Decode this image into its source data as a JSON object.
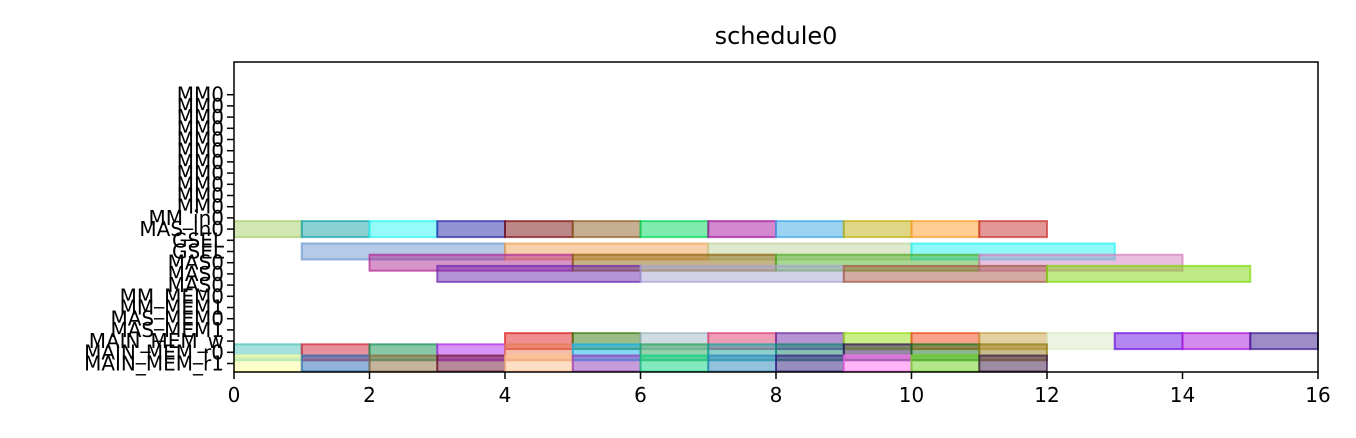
{
  "chart_data": {
    "type": "gantt",
    "title": "schedule0",
    "xlim": [
      0,
      16
    ],
    "xticks": [
      0,
      2,
      4,
      6,
      8,
      10,
      12,
      14,
      16
    ],
    "rows": [
      "MM0",
      "MM0",
      "MM0",
      "MM0",
      "MM0",
      "MM0",
      "MM0",
      "MM0",
      "MM0",
      "MM0",
      "MM0",
      "MM_in0",
      "MAS_in0",
      "GSEL",
      "GSEL",
      "MAS0",
      "MAS0",
      "MAS0",
      "MM_MEM0",
      "MM_MEM1",
      "MAS_MEM0",
      "MAS_MEM1",
      "MAIN_MEM_w",
      "MAIN_MEM_r0",
      "MAIN_MEM_r1"
    ],
    "bars": [
      {
        "row": 12,
        "start": 0,
        "end": 1,
        "color": "#a8cf6a"
      },
      {
        "row": 12,
        "start": 1,
        "end": 2,
        "color": "#14a2a8"
      },
      {
        "row": 12,
        "start": 2,
        "end": 3,
        "color": "#2cf7f2"
      },
      {
        "row": 12,
        "start": 3,
        "end": 4,
        "color": "#2a2aaa"
      },
      {
        "row": 12,
        "start": 4,
        "end": 5,
        "color": "#7e0f0f"
      },
      {
        "row": 12,
        "start": 5,
        "end": 6,
        "color": "#8d6025"
      },
      {
        "row": 12,
        "start": 6,
        "end": 7,
        "color": "#00d85a"
      },
      {
        "row": 12,
        "start": 7,
        "end": 8,
        "color": "#a6139c"
      },
      {
        "row": 12,
        "start": 8,
        "end": 9,
        "color": "#3aa7e8"
      },
      {
        "row": 12,
        "start": 9,
        "end": 10,
        "color": "#bfb00c"
      },
      {
        "row": 12,
        "start": 10,
        "end": 11,
        "color": "#ff9c26"
      },
      {
        "row": 12,
        "start": 11,
        "end": 12,
        "color": "#c92f2f"
      },
      {
        "row": 14,
        "start": 1,
        "end": 4,
        "color": "#6b96cf"
      },
      {
        "row": 14,
        "start": 4,
        "end": 7,
        "color": "#f0a052"
      },
      {
        "row": 14,
        "start": 7,
        "end": 10,
        "color": "#bdd49b"
      },
      {
        "row": 14,
        "start": 10,
        "end": 13,
        "color": "#1ff3f2"
      },
      {
        "row": 15,
        "start": 2,
        "end": 5,
        "color": "#b02a93"
      },
      {
        "row": 15,
        "start": 5,
        "end": 8,
        "color": "#8e6510"
      },
      {
        "row": 15,
        "start": 8,
        "end": 11,
        "color": "#52ad2c"
      },
      {
        "row": 15,
        "start": 11,
        "end": 14,
        "color": "#d37dbe"
      },
      {
        "row": 16,
        "start": 3,
        "end": 6,
        "color": "#6d25ae"
      },
      {
        "row": 16,
        "start": 6,
        "end": 9,
        "color": "#a7a4d3"
      },
      {
        "row": 16,
        "start": 9,
        "end": 12,
        "color": "#a55a42"
      },
      {
        "row": 16,
        "start": 12,
        "end": 15,
        "color": "#80d70d"
      },
      {
        "row": 22,
        "start": 4,
        "end": 5,
        "color": "#dd1e1e"
      },
      {
        "row": 22,
        "start": 5,
        "end": 6,
        "color": "#3a7b12"
      },
      {
        "row": 22,
        "start": 6,
        "end": 7,
        "color": "#9fb9c3"
      },
      {
        "row": 22,
        "start": 7,
        "end": 8,
        "color": "#df3d72"
      },
      {
        "row": 22,
        "start": 8,
        "end": 9,
        "color": "#6b2ea6"
      },
      {
        "row": 22,
        "start": 9,
        "end": 10,
        "color": "#95e012"
      },
      {
        "row": 22,
        "start": 10,
        "end": 11,
        "color": "#ee4716"
      },
      {
        "row": 22,
        "start": 11,
        "end": 12,
        "color": "#c7a147"
      },
      {
        "row": 22,
        "start": 12,
        "end": 13,
        "color": "#dbe9c4"
      },
      {
        "row": 22,
        "start": 13,
        "end": 14,
        "color": "#6a0de4"
      },
      {
        "row": 22,
        "start": 14,
        "end": 15,
        "color": "#a917dc"
      },
      {
        "row": 22,
        "start": 15,
        "end": 16,
        "color": "#3a1a8f"
      },
      {
        "row": 23,
        "start": 0,
        "end": 1,
        "color": "#4fc3bb"
      },
      {
        "row": 23,
        "start": 1,
        "end": 2,
        "color": "#d0243a"
      },
      {
        "row": 23,
        "start": 2,
        "end": 3,
        "color": "#149054"
      },
      {
        "row": 23,
        "start": 3,
        "end": 4,
        "color": "#b22aed"
      },
      {
        "row": 23,
        "start": 4,
        "end": 5,
        "color": "#e77d56"
      },
      {
        "row": 23,
        "start": 5,
        "end": 6,
        "color": "#0fb2f0"
      },
      {
        "row": 23,
        "start": 6,
        "end": 7,
        "color": "#2ea35d"
      },
      {
        "row": 23,
        "start": 7,
        "end": 8,
        "color": "#16a4a0"
      },
      {
        "row": 23,
        "start": 8,
        "end": 9,
        "color": "#14836f"
      },
      {
        "row": 23,
        "start": 9,
        "end": 10,
        "color": "#2e0f53"
      },
      {
        "row": 23,
        "start": 10,
        "end": 11,
        "color": "#17741c"
      },
      {
        "row": 23,
        "start": 11,
        "end": 12,
        "color": "#947c14"
      },
      {
        "row": 24,
        "start": 0,
        "end": 1,
        "color": "#ffff99"
      },
      {
        "row": 24,
        "start": 1,
        "end": 2,
        "color": "#1f68b4"
      },
      {
        "row": 24,
        "start": 2,
        "end": 3,
        "color": "#8c6a3c"
      },
      {
        "row": 24,
        "start": 3,
        "end": 4,
        "color": "#6e1438"
      },
      {
        "row": 24,
        "start": 4,
        "end": 5,
        "color": "#ffc08a"
      },
      {
        "row": 24,
        "start": 5,
        "end": 6,
        "color": "#9138b8"
      },
      {
        "row": 24,
        "start": 6,
        "end": 7,
        "color": "#08d37e"
      },
      {
        "row": 24,
        "start": 7,
        "end": 8,
        "color": "#2a84b9"
      },
      {
        "row": 24,
        "start": 8,
        "end": 9,
        "color": "#321d7d"
      },
      {
        "row": 24,
        "start": 9,
        "end": 10,
        "color": "#ff6ef0"
      },
      {
        "row": 24,
        "start": 10,
        "end": 11,
        "color": "#66cf18"
      },
      {
        "row": 24,
        "start": 11,
        "end": 12,
        "color": "#3c1a47"
      }
    ]
  }
}
